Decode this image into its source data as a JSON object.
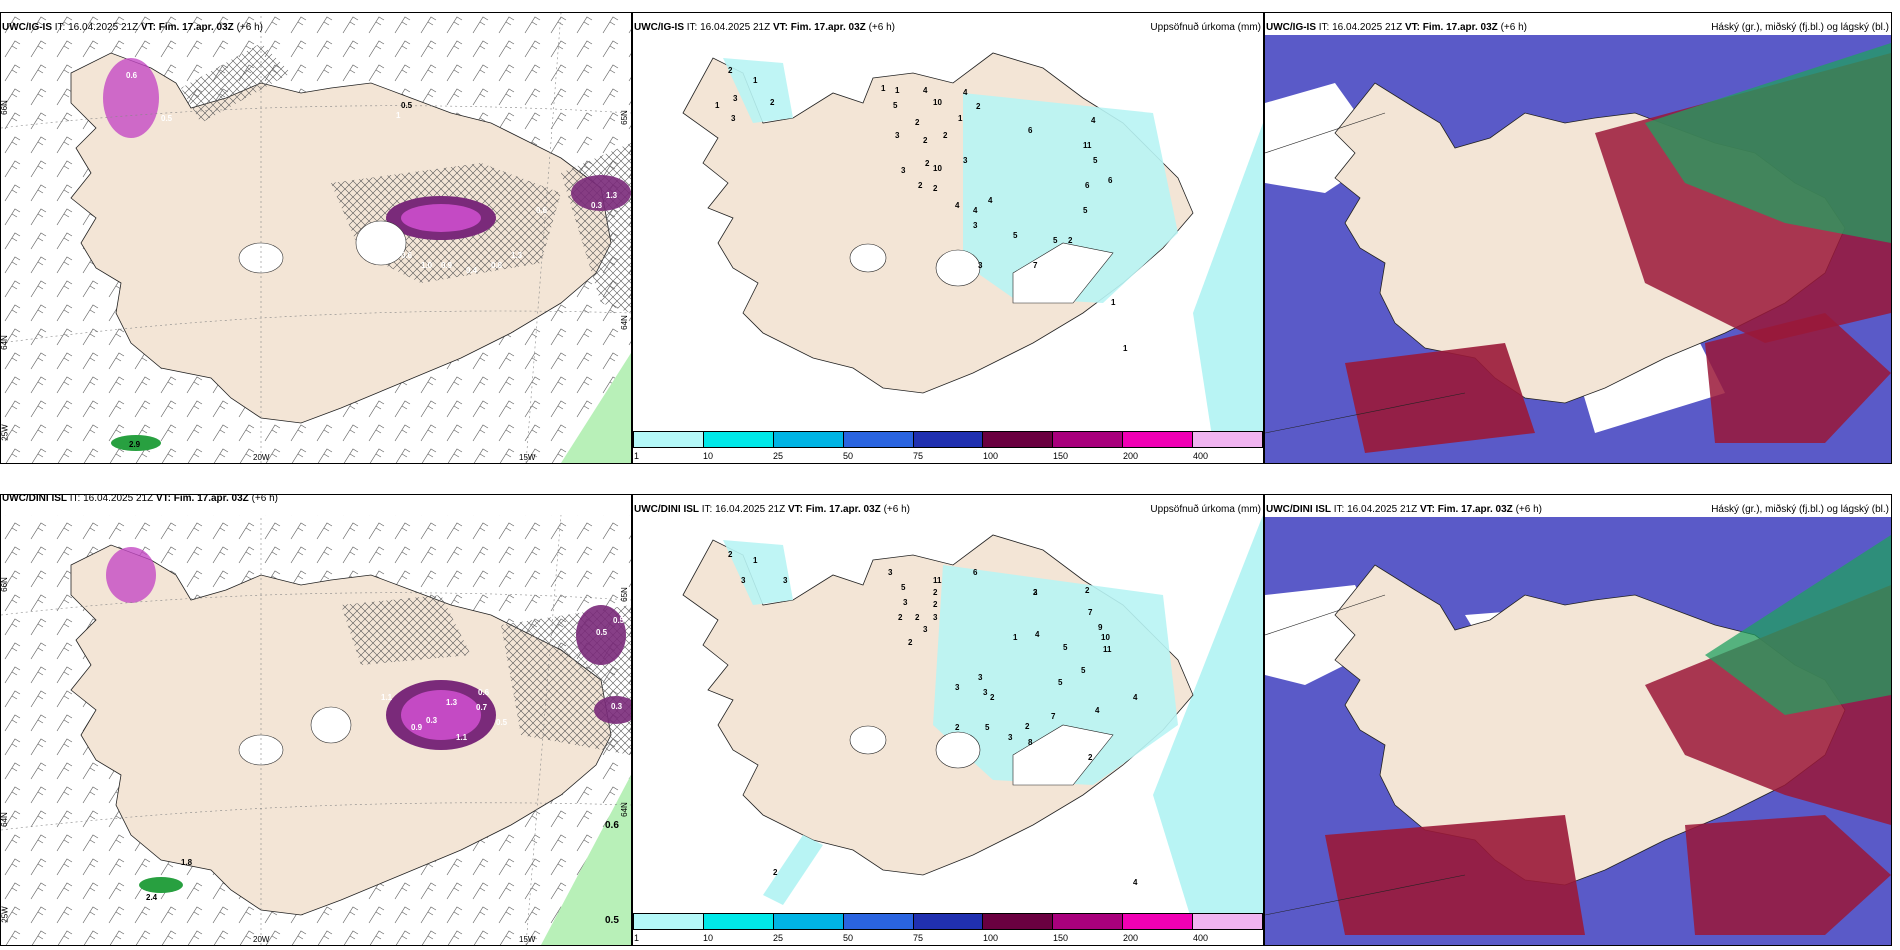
{
  "top": {
    "left": {
      "model": "UWC/IG-IS",
      "it_label": "IT:",
      "it": "16.04.2025 21Z",
      "vt_label": "VT:",
      "vt": "Fim. 17.apr. 03Z",
      "lead": "(+6 h)"
    },
    "mid": {
      "model": "UWC/IG-IS",
      "it_label": "IT:",
      "it": "16.04.2025 21Z",
      "vt_label": "VT:",
      "vt": "Fim. 17.apr. 03Z",
      "lead": "(+6 h)",
      "title": "Uppsöfnuð úrkoma (mm)"
    },
    "right": {
      "model": "UWC/IG-IS",
      "it_label": "IT:",
      "it": "16.04.2025 21Z",
      "vt_label": "VT:",
      "vt": "Fim. 17.apr. 03Z",
      "lead": "(+6 h)",
      "title": "Háský (gr.), miðský (fj.bl.) og lágský (bl.)"
    }
  },
  "bottom": {
    "left": {
      "model": "UWC/DINI ISL",
      "it_label": "IT:",
      "it": "16.04.2025 21Z",
      "vt_label": "VT:",
      "vt": "Fim. 17.apr. 03Z",
      "lead": "(+6",
      "lead2": "h)"
    },
    "mid": {
      "model": "UWC/DINI ISL",
      "it_label": "IT:",
      "it": "16.04.2025 21Z",
      "vt_label": "VT:",
      "vt": "Fim. 17.apr. 03Z",
      "lead": "(+6 h)",
      "title": "Uppsöfnuð úrkoma (mm)"
    },
    "right": {
      "model": "UWC/DINI ISL",
      "it_label": "IT:",
      "it": "16.04.2025 21Z",
      "vt_label": "VT:",
      "vt": "Fim. 17.apr. 03Z",
      "lead": "(+6 h)",
      "title": "Háský (gr.), miðský (fj.bl.) og lágský (bl.)"
    }
  },
  "axes": {
    "lon_labels": [
      "20W",
      "15W"
    ],
    "lat_labels_left": [
      "66N",
      "64N",
      "25W"
    ],
    "lat_labels_right": [
      "65N",
      "64N"
    ]
  },
  "colorbar": {
    "ticks": [
      "1",
      "10",
      "25",
      "50",
      "75",
      "100",
      "150",
      "200",
      "400"
    ],
    "colors": [
      "#b4f8f8",
      "#00e8e8",
      "#00b4e4",
      "#2a64e0",
      "#2030b0",
      "#6a0040",
      "#a8007c",
      "#f000b4",
      "#f0b4f0"
    ]
  },
  "colors": {
    "land": "#f3e5d6",
    "precip_light": "#b8f4f4",
    "snow_magenta": "#c44ac4",
    "wind_green": "#b8f0b8",
    "low_cloud": "#5a5ac8",
    "mid_cloud": "#9a1838",
    "high_cloud": "#20a060"
  },
  "top_mid_values": [
    "2",
    "1",
    "3",
    "1",
    "3",
    "2",
    "5",
    "1",
    "1",
    "4",
    "10",
    "4",
    "2",
    "2",
    "1",
    "3",
    "2",
    "2",
    "3",
    "10",
    "6",
    "11",
    "5",
    "6",
    "6",
    "2",
    "3",
    "2",
    "2",
    "4",
    "4",
    "4",
    "3",
    "5",
    "5",
    "2",
    "5",
    "7",
    "3",
    "4",
    "1",
    "1"
  ],
  "bottom_mid_values": [
    "2",
    "1",
    "3",
    "3",
    "5",
    "3",
    "3",
    "11",
    "6",
    "2",
    "2",
    "3",
    "2",
    "2",
    "3",
    "2",
    "7",
    "9",
    "10",
    "11",
    "3",
    "2",
    "5",
    "5",
    "5",
    "4",
    "1",
    "3",
    "3",
    "2",
    "3",
    "2",
    "2",
    "5",
    "7",
    "3",
    "8",
    "2",
    "4",
    "2",
    "4",
    "2",
    "4"
  ],
  "top_left_values": [
    "0.6",
    "0.5",
    "1",
    "0.6",
    "1.0",
    "0.9",
    "0.4",
    "0.8",
    "1.3",
    "0.6",
    "0.3",
    "1.3",
    "2.9",
    "0.5"
  ],
  "bottom_left_values": [
    "0.5",
    "1.1",
    "1.3",
    "0.6",
    "0.7",
    "0.5",
    "1.1",
    "0.3",
    "0.9",
    "0.5",
    "0.3",
    "2.4",
    "1.8",
    "0.6",
    "0.5"
  ]
}
